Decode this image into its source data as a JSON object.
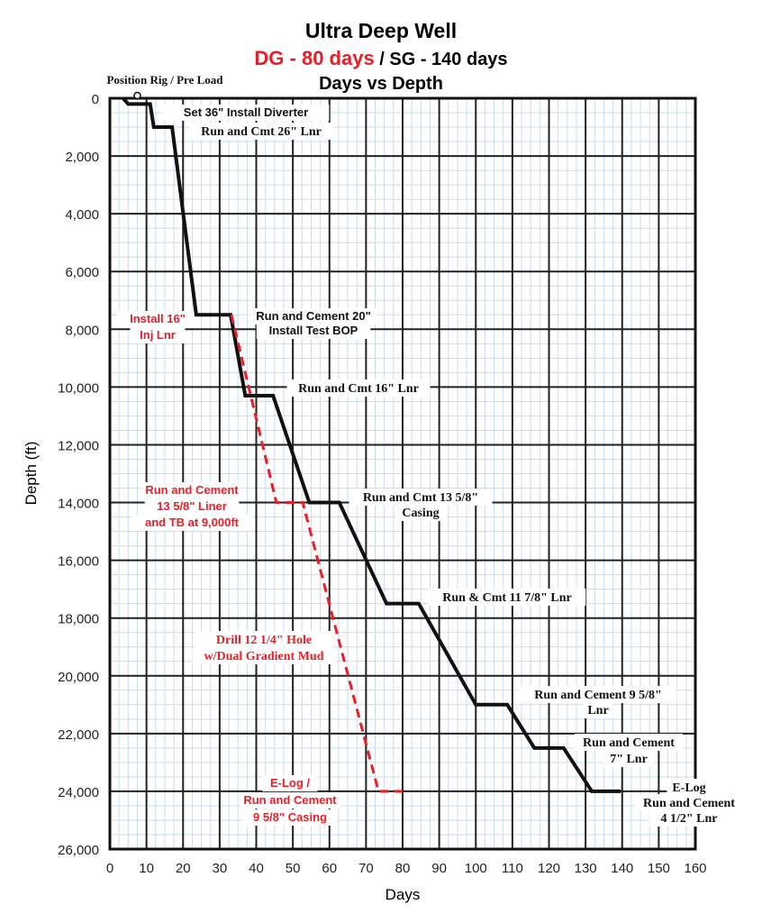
{
  "chart_data": {
    "type": "line",
    "title": "Ultra Deep Well",
    "subtitle_dg": "DG - 80 days",
    "subtitle_sep": " / ",
    "subtitle_sg": "SG - 140 days",
    "subtitle2": "Days vs Depth",
    "xlabel": "Days",
    "ylabel": "Depth (ft)",
    "xlim": [
      0,
      160
    ],
    "ylim": [
      0,
      26000
    ],
    "y_inverted": true,
    "grid": true,
    "xticks": [
      "0",
      "10",
      "20",
      "30",
      "40",
      "50",
      "60",
      "70",
      "80",
      "90",
      "100",
      "110",
      "120",
      "130",
      "140",
      "150",
      "160"
    ],
    "yticks": [
      "0",
      "2,000",
      "4,000",
      "6,000",
      "8,000",
      "10,000",
      "12,000",
      "14,000",
      "16,000",
      "18,000",
      "20,000",
      "22,000",
      "24,000",
      "26,000"
    ],
    "series": [
      {
        "name": "SG - 140 days",
        "color": "#111111",
        "style": "solid",
        "x": [
          3.6,
          5,
          11,
          12,
          17,
          23.6,
          33,
          37,
          44.6,
          54.5,
          62.7,
          75.6,
          84.4,
          100,
          108.6,
          116,
          124,
          131.7,
          139.6
        ],
        "y": [
          0,
          200,
          200,
          1000,
          1000,
          7500,
          7500,
          10300,
          10300,
          14000,
          14000,
          17500,
          17500,
          21000,
          21000,
          22500,
          22500,
          24000,
          24000
        ]
      },
      {
        "name": "DG - 80 days",
        "color": "#ee1c25",
        "style": "dashed",
        "x": [
          33.2,
          45.5,
          52.7,
          73.4,
          80
        ],
        "y": [
          7500,
          14000,
          14000,
          24000,
          24000
        ]
      }
    ],
    "annotations": [
      {
        "lines": [
          "Position Rig / Pre Load"
        ],
        "color": "black"
      },
      {
        "lines": [
          "Set 36\" Install Diverter"
        ],
        "color": "black"
      },
      {
        "lines": [
          "Run and Cmt 26\" Lnr"
        ],
        "color": "black"
      },
      {
        "lines": [
          "Install 16\"",
          "Inj Lnr"
        ],
        "color": "red"
      },
      {
        "lines": [
          "Run and Cement 20\"",
          "Install Test BOP"
        ],
        "color": "black"
      },
      {
        "lines": [
          "Run and Cmt 16\" Lnr"
        ],
        "color": "black"
      },
      {
        "lines": [
          "Run and Cement",
          "13 5/8\" Liner",
          "and TB at 9,000ft"
        ],
        "color": "red"
      },
      {
        "lines": [
          "Run and Cmt 13 5/8\"",
          "Casing"
        ],
        "color": "black"
      },
      {
        "lines": [
          "Run & Cmt 11 7/8\" Lnr"
        ],
        "color": "black"
      },
      {
        "lines": [
          "Drill 12 1/4\" Hole",
          "w/Dual Gradient Mud"
        ],
        "color": "red"
      },
      {
        "lines": [
          "Run and Cement 9 5/8\"",
          "Lnr"
        ],
        "color": "black"
      },
      {
        "lines": [
          "Run and Cement",
          "7\" Lnr"
        ],
        "color": "black"
      },
      {
        "lines": [
          "E-Log /",
          "Run and Cement",
          "9 5/8\" Casing"
        ],
        "color": "red"
      },
      {
        "lines": [
          "E-Log",
          "Run and Cement",
          "4 1/2\" Lnr"
        ],
        "color": "black"
      }
    ],
    "colors": {
      "dg": "#ee1c25",
      "sg": "#111111",
      "minor_grid": "#c9dcf2"
    }
  }
}
